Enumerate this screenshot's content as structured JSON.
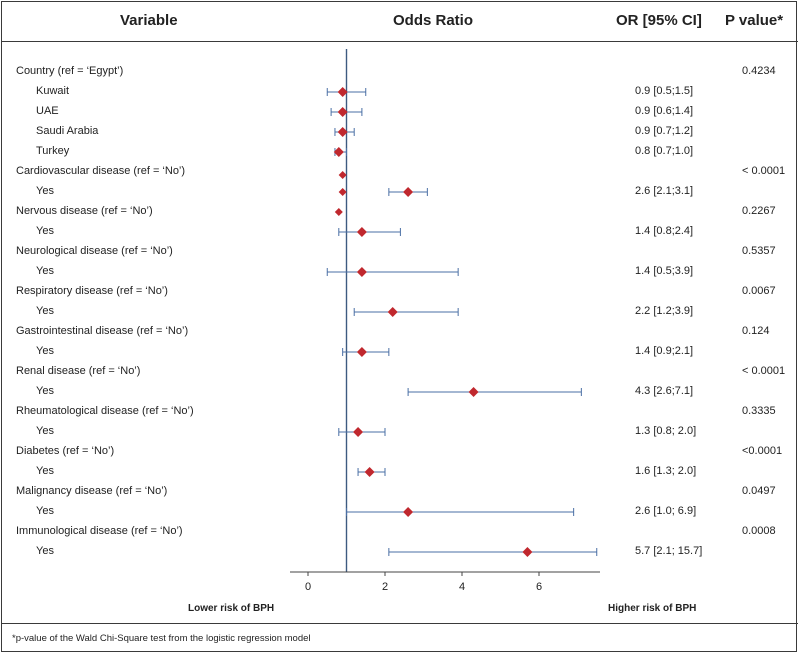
{
  "headers": {
    "variable": "Variable",
    "odds_ratio": "Odds Ratio",
    "or_ci": "OR [95% CI]",
    "p_value": "P value*"
  },
  "footer": {
    "lower": "Lower risk of BPH",
    "higher": "Higher risk of BPH",
    "footnote": "*p-value of the Wald Chi-Square test from the logistic regression model"
  },
  "chart_data": {
    "type": "forest",
    "xlim": [
      -0.5,
      7.5
    ],
    "xticks": [
      "0",
      "2",
      "4",
      "6"
    ],
    "reference_line": 1,
    "marker_color": "#c0282e",
    "ci_color": "#4a6fa5",
    "rows": [
      {
        "label": "Country (ref = ‘Egypt’)",
        "group": true,
        "or": null,
        "lo": null,
        "hi": null,
        "ci_text": "",
        "p": "0.4234"
      },
      {
        "label": "Kuwait",
        "group": false,
        "or": 0.9,
        "lo": 0.5,
        "hi": 1.5,
        "ci_text": "0.9 [0.5;1.5]",
        "p": ""
      },
      {
        "label": "UAE",
        "group": false,
        "or": 0.9,
        "lo": 0.6,
        "hi": 1.4,
        "ci_text": "0.9 [0.6;1.4]",
        "p": ""
      },
      {
        "label": "Saudi Arabia",
        "group": false,
        "or": 0.9,
        "lo": 0.7,
        "hi": 1.2,
        "ci_text": "0.9 [0.7;1.2]",
        "p": ""
      },
      {
        "label": "Turkey",
        "group": false,
        "or": 0.8,
        "lo": 0.7,
        "hi": 1.0,
        "ci_text": "0.8 [0.7;1.0]",
        "p": ""
      },
      {
        "label": "Cardiovascular disease (ref = ‘No’)",
        "group": true,
        "or": null,
        "lo": null,
        "hi": null,
        "ci_text": "",
        "p": "< 0.0001"
      },
      {
        "label": "Yes",
        "group": false,
        "or": 2.6,
        "lo": 2.1,
        "hi": 3.1,
        "ci_text": "2.6 [2.1;3.1]",
        "p": ""
      },
      {
        "label": "Nervous disease (ref = ‘No’)",
        "group": true,
        "or": null,
        "lo": null,
        "hi": null,
        "ci_text": "",
        "p": "0.2267"
      },
      {
        "label": "Yes",
        "group": false,
        "or": 1.4,
        "lo": 0.8,
        "hi": 2.4,
        "ci_text": "1.4 [0.8;2.4]",
        "p": ""
      },
      {
        "label": "Neurological disease (ref = ‘No’)",
        "group": true,
        "or": null,
        "lo": null,
        "hi": null,
        "ci_text": "",
        "p": "0.5357"
      },
      {
        "label": "Yes",
        "group": false,
        "or": 1.4,
        "lo": 0.5,
        "hi": 3.9,
        "ci_text": "1.4 [0.5;3.9]",
        "p": ""
      },
      {
        "label": "Respiratory disease (ref = ‘No’)",
        "group": true,
        "or": null,
        "lo": null,
        "hi": null,
        "ci_text": "",
        "p": "0.0067"
      },
      {
        "label": "Yes",
        "group": false,
        "or": 2.2,
        "lo": 1.2,
        "hi": 3.9,
        "ci_text": "2.2 [1.2;3.9]",
        "p": ""
      },
      {
        "label": "Gastrointestinal disease (ref = ‘No’)",
        "group": true,
        "or": null,
        "lo": null,
        "hi": null,
        "ci_text": "",
        "p": "0.124"
      },
      {
        "label": "Yes",
        "group": false,
        "or": 1.4,
        "lo": 0.9,
        "hi": 2.1,
        "ci_text": "1.4 [0.9;2.1]",
        "p": ""
      },
      {
        "label": "Renal disease (ref = ‘No’)",
        "group": true,
        "or": null,
        "lo": null,
        "hi": null,
        "ci_text": "",
        "p": "< 0.0001"
      },
      {
        "label": "Yes",
        "group": false,
        "or": 4.3,
        "lo": 2.6,
        "hi": 7.1,
        "ci_text": "4.3 [2.6;7.1]",
        "p": ""
      },
      {
        "label": "Rheumatological disease (ref = ‘No’)",
        "group": true,
        "or": null,
        "lo": null,
        "hi": null,
        "ci_text": "",
        "p": "0.3335"
      },
      {
        "label": "Yes",
        "group": false,
        "or": 1.3,
        "lo": 0.8,
        "hi": 2.0,
        "ci_text": "1.3 [0.8; 2.0]",
        "p": ""
      },
      {
        "label": "Diabetes (ref = ‘No’)",
        "group": true,
        "or": null,
        "lo": null,
        "hi": null,
        "ci_text": "",
        "p": "<0.0001"
      },
      {
        "label": "Yes",
        "group": false,
        "or": 1.6,
        "lo": 1.3,
        "hi": 2.0,
        "ci_text": "1.6 [1.3; 2.0]",
        "p": ""
      },
      {
        "label": "Malignancy disease (ref = ‘No’)",
        "group": true,
        "or": null,
        "lo": null,
        "hi": null,
        "ci_text": "",
        "p": "0.0497"
      },
      {
        "label": "Yes",
        "group": false,
        "or": 2.6,
        "lo": 1.0,
        "hi": 6.9,
        "ci_text": "2.6 [1.0; 6.9]",
        "p": ""
      },
      {
        "label": "Immunological disease (ref = ‘No’)",
        "group": true,
        "or": null,
        "lo": null,
        "hi": null,
        "ci_text": "",
        "p": "0.0008"
      },
      {
        "label": "Yes",
        "group": false,
        "or": 5.7,
        "lo": 2.1,
        "hi": 15.7,
        "ci_text": "5.7 [2.1; 15.7]",
        "p": ""
      }
    ],
    "extra_markers": [
      {
        "or": 0.9,
        "ci_text": ""
      },
      {
        "or": 0.9,
        "ci_text": ""
      },
      {
        "or": 0.8,
        "ci_text": ""
      }
    ]
  }
}
